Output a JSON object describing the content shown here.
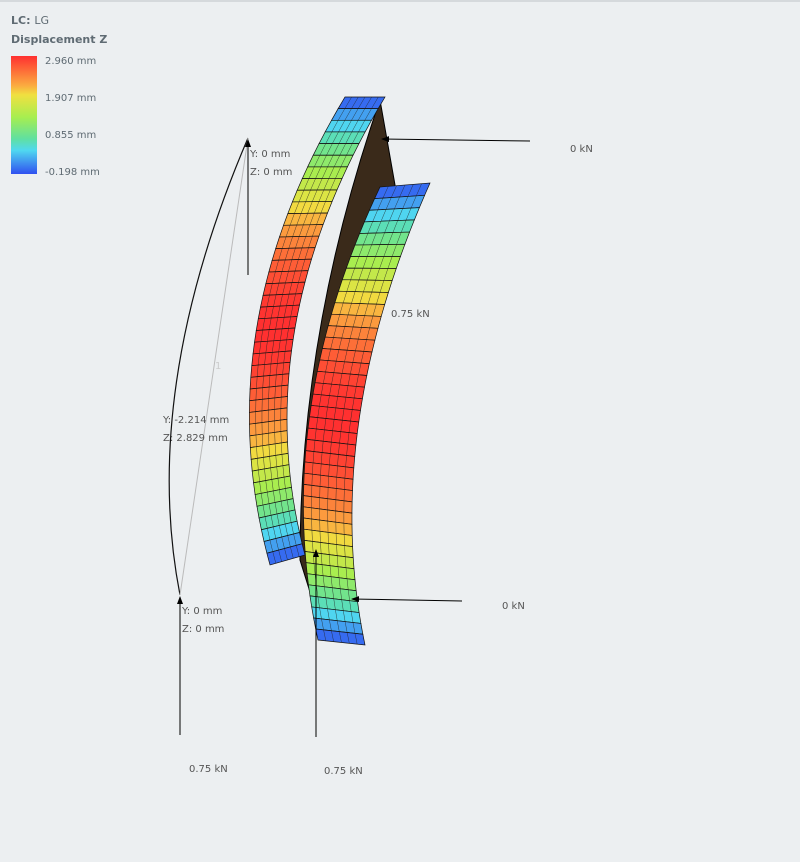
{
  "legend": {
    "lc_label": "LC:",
    "lc_value": "LG",
    "title": "Displacement Z",
    "ticks": [
      "2.960 mm",
      "1.907 mm",
      "0.855 mm",
      "-0.198 mm"
    ],
    "range": [
      -0.198,
      2.96
    ],
    "colors": [
      "#ff3030",
      "#fbab40",
      "#f0e040",
      "#a6ee50",
      "#60e0a0",
      "#50d8f0",
      "#3050f0"
    ]
  },
  "annotations": {
    "top_support": {
      "y": "Y: 0 mm",
      "z": "Z: 0 mm"
    },
    "mid_point": {
      "y": "Y: -2.214 mm",
      "z": "Z: 2.829 mm"
    },
    "bottom_support": {
      "y": "Y: 0 mm",
      "z": "Z: 0 mm"
    },
    "member_label": "1"
  },
  "loads": {
    "top_right": "0 kN",
    "mid_right": "0.75 kN",
    "bottom_right": "0 kN",
    "bottom_left": "0.75 kN",
    "bottom_center": "0.75 kN"
  }
}
